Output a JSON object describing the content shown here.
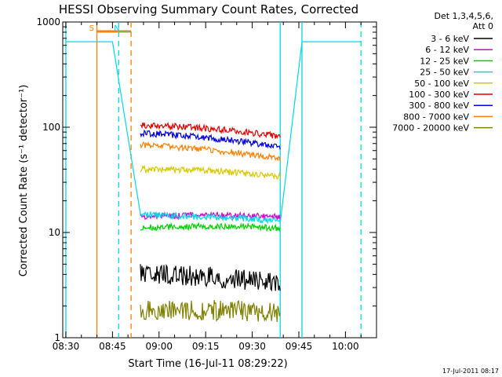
{
  "chart_data": {
    "type": "line",
    "title": "HESSI Observing Summary Count Rates, Corrected",
    "xlabel": "Start Time (16-Jul-11 08:29:22)",
    "ylabel": "Corrected Count Rate (s⁻¹ detector⁻¹)",
    "yscale": "log",
    "ylim": [
      1,
      1000
    ],
    "xlim": [
      "08:29",
      "10:10"
    ],
    "x_ticks": [
      "08:30",
      "08:45",
      "09:00",
      "09:15",
      "09:30",
      "09:45",
      "10:00"
    ],
    "y_ticks": [
      "1",
      "10",
      "100",
      "1000"
    ],
    "legend": {
      "header1": "Det 1,3,4,5,6,",
      "header2": "Att 0",
      "position": "right-outside"
    },
    "series": [
      {
        "name": "3 - 6 keV",
        "color": "#000000",
        "segments": [
          {
            "x": [
              "08:54",
              "09:39"
            ],
            "y": [
              4.0,
              3.3
            ]
          }
        ]
      },
      {
        "name": "6 - 12 keV",
        "color": "#d000d0",
        "segments": [
          {
            "x": [
              "08:54",
              "09:39"
            ],
            "y": [
              14,
              14
            ]
          }
        ]
      },
      {
        "name": "12 - 25 keV",
        "color": "#00d000",
        "segments": [
          {
            "x": [
              "08:54",
              "09:39"
            ],
            "y": [
              11,
              11
            ]
          }
        ]
      },
      {
        "name": "25 - 50 keV",
        "color": "#00d8e8",
        "segments": [
          {
            "x": [
              "08:30",
              "08:45",
              "08:54",
              "09:39",
              "09:46",
              "10:05"
            ],
            "y": [
              650,
              650,
              15,
              13,
              650,
              650
            ]
          }
        ]
      },
      {
        "name": "50 - 100 keV",
        "color": "#d8c800",
        "segments": [
          {
            "x": [
              "08:54",
              "09:39"
            ],
            "y": [
              40,
              34
            ]
          }
        ]
      },
      {
        "name": "100 - 300 keV",
        "color": "#e00000",
        "segments": [
          {
            "x": [
              "08:54",
              "09:39"
            ],
            "y": [
              105,
              82
            ]
          }
        ]
      },
      {
        "name": "300 - 800 keV",
        "color": "#0000e0",
        "segments": [
          {
            "x": [
              "08:54",
              "09:39"
            ],
            "y": [
              88,
              65
            ]
          }
        ]
      },
      {
        "name": "800 - 7000 keV",
        "color": "#ff7f00",
        "segments": [
          {
            "x": [
              "08:54",
              "09:39"
            ],
            "y": [
              68,
              50
            ]
          }
        ]
      },
      {
        "name": "7000 - 20000 keV",
        "color": "#808000",
        "segments": [
          {
            "x": [
              "08:54",
              "09:39"
            ],
            "y": [
              1.8,
              1.7
            ]
          }
        ]
      }
    ],
    "annotations": [
      {
        "text": "S",
        "color": "#ff7f00",
        "x": "08:40"
      },
      {
        "text": "N",
        "color": "#00d8e8",
        "x": "08:48"
      }
    ],
    "vertical_lines": [
      {
        "x": "08:30",
        "color": "#00d8e8",
        "style": "solid"
      },
      {
        "x": "08:40",
        "color": "#ff7f00",
        "style": "solid"
      },
      {
        "x": "08:47",
        "color": "#00d8e8",
        "style": "dashed"
      },
      {
        "x": "08:51",
        "color": "#ff7f00",
        "style": "dashed"
      },
      {
        "x": "09:39",
        "color": "#00d8e8",
        "style": "solid"
      },
      {
        "x": "09:46",
        "color": "#00d8e8",
        "style": "solid"
      },
      {
        "x": "10:05",
        "color": "#00d8e8",
        "style": "dashed"
      }
    ],
    "grid": false
  },
  "footer": {
    "timestamp": "17-Jul-2011 08:17"
  }
}
